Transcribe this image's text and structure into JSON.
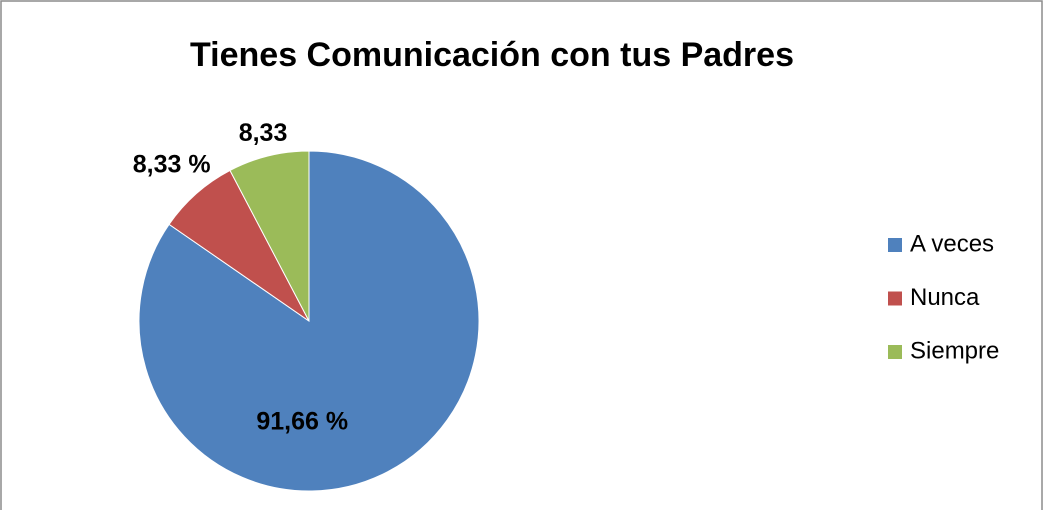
{
  "chart_data": {
    "type": "pie",
    "title": "Tienes Comunicación con tus Padres",
    "categories": [
      "A veces",
      "Nunca",
      "Siempre"
    ],
    "values": [
      91.66,
      8.33,
      8.33
    ],
    "value_labels": [
      "91,66 %",
      "8,33 %",
      "8,33"
    ],
    "colors": [
      "#4f81bd",
      "#c0504d",
      "#9bbb59"
    ],
    "legend": "right"
  }
}
